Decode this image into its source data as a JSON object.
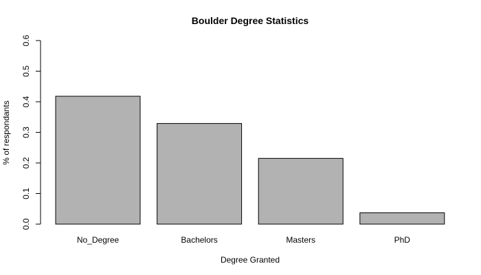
{
  "chart_data": {
    "type": "bar",
    "title": "Boulder Degree Statistics",
    "xlabel": "Degree Granted",
    "ylabel": "% of respondants",
    "categories": [
      "No_Degree",
      "Bachelors",
      "Masters",
      "PhD"
    ],
    "values": [
      0.418,
      0.329,
      0.215,
      0.037
    ],
    "ylim": [
      0,
      0.6
    ],
    "yticks": [
      "0.0",
      "0.1",
      "0.2",
      "0.3",
      "0.4",
      "0.5",
      "0.6"
    ],
    "grid": false,
    "legend": "none",
    "bar_color": "#b2b2b2",
    "border_color": "#000000"
  }
}
